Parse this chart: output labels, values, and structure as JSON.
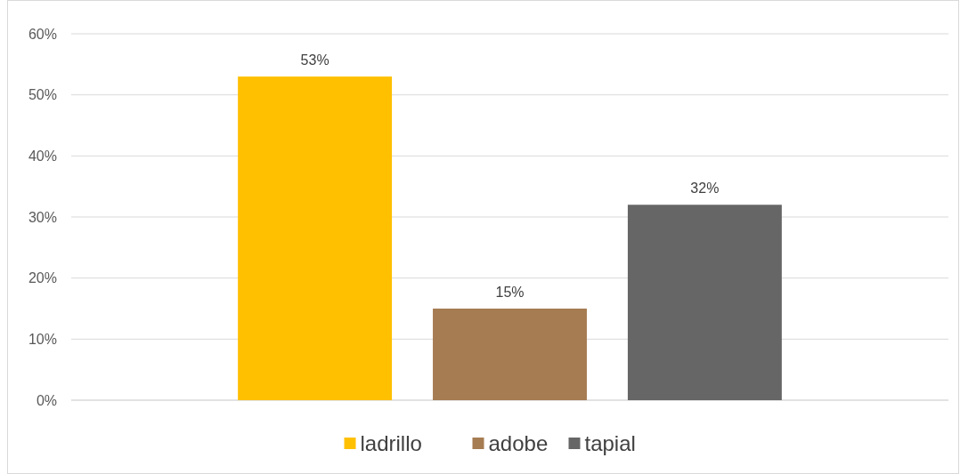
{
  "chart_data": {
    "type": "bar",
    "categories": [
      null
    ],
    "series": [
      {
        "name": "ladrillo",
        "color": "#ffc000",
        "values": [
          53
        ],
        "value_labels": [
          "53%"
        ]
      },
      {
        "name": "adobe",
        "color": "#a67c52",
        "values": [
          15
        ],
        "value_labels": [
          "15%"
        ]
      },
      {
        "name": "tapial",
        "color": "#666666",
        "values": [
          32
        ],
        "value_labels": [
          "32%"
        ]
      }
    ],
    "ylim": [
      0,
      60
    ],
    "yticks": [
      {
        "value": 0,
        "label": "0%"
      },
      {
        "value": 10,
        "label": "10%"
      },
      {
        "value": 20,
        "label": "20%"
      },
      {
        "value": 30,
        "label": "30%"
      },
      {
        "value": 40,
        "label": "40%"
      },
      {
        "value": 50,
        "label": "50%"
      },
      {
        "value": 60,
        "label": "60%"
      }
    ],
    "grid": "y",
    "legend": "bottom"
  }
}
